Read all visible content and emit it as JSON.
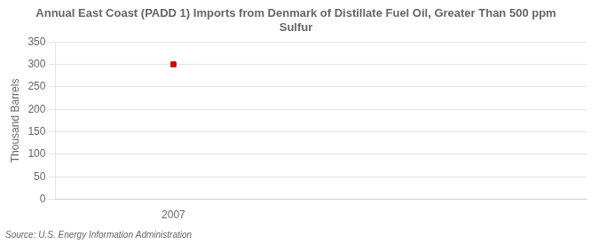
{
  "chart_data": {
    "type": "scatter",
    "title": "Annual East Coast (PADD 1) Imports from Denmark of Distillate Fuel Oil, Greater Than 500 ppm\nSulfur",
    "y_label": "Thousand Barrels",
    "annotation": "Source: U.S. Energy Information Administration",
    "x": [
      2007
    ],
    "values": [
      300
    ],
    "color": "#cc0000",
    "marker": "square",
    "xlim": [
      2006.6,
      2008.4
    ],
    "xticks": [
      2007
    ],
    "ylim": [
      0,
      350
    ],
    "yticks": [
      0,
      50,
      100,
      150,
      200,
      250,
      300,
      350
    ],
    "grid": "y"
  }
}
